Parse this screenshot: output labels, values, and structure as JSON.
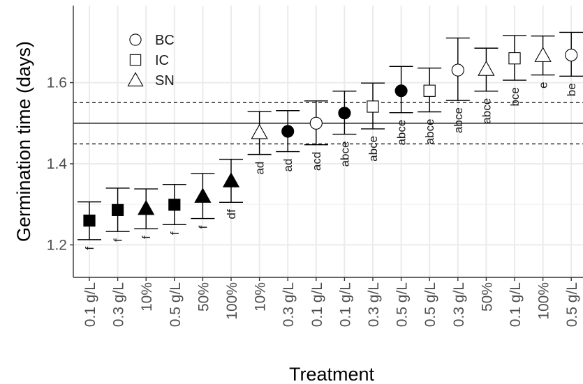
{
  "chart_data": {
    "type": "scatter",
    "title": "",
    "xlabel": "Treatment",
    "ylabel": "Germination time (days)",
    "ylim": [
      1.12,
      1.79
    ],
    "yticks": [
      1.2,
      1.4,
      1.6
    ],
    "y_tick_labels": [
      "1.2",
      "1.4",
      "1.6"
    ],
    "grid": true,
    "legend_position": "top-left",
    "legend": [
      {
        "label": "BC",
        "marker": "circle"
      },
      {
        "label": "IC",
        "marker": "square"
      },
      {
        "label": "SN",
        "marker": "triangle"
      }
    ],
    "reference_lines": [
      {
        "y": 1.5,
        "style": "solid"
      },
      {
        "y": 1.551,
        "style": "dashed"
      },
      {
        "y": 1.449,
        "style": "dashed"
      }
    ],
    "points": [
      {
        "treatment": "0.1 g/L",
        "group": "IC",
        "filled": true,
        "mean": 1.26,
        "lower": 1.213,
        "upper": 1.306,
        "letters": "f"
      },
      {
        "treatment": "0.3 g/L",
        "group": "IC",
        "filled": true,
        "mean": 1.286,
        "lower": 1.233,
        "upper": 1.34,
        "letters": "f"
      },
      {
        "treatment": "10%",
        "group": "SN",
        "filled": true,
        "mean": 1.29,
        "lower": 1.24,
        "upper": 1.338,
        "letters": "f"
      },
      {
        "treatment": "0.5 g/L",
        "group": "IC",
        "filled": true,
        "mean": 1.299,
        "lower": 1.25,
        "upper": 1.349,
        "letters": "f"
      },
      {
        "treatment": "50%",
        "group": "SN",
        "filled": true,
        "mean": 1.32,
        "lower": 1.265,
        "upper": 1.376,
        "letters": "f"
      },
      {
        "treatment": "100%",
        "group": "SN",
        "filled": true,
        "mean": 1.358,
        "lower": 1.305,
        "upper": 1.411,
        "letters": "df"
      },
      {
        "treatment": "10%",
        "group": "SN",
        "filled": false,
        "mean": 1.477,
        "lower": 1.423,
        "upper": 1.529,
        "letters": "ad"
      },
      {
        "treatment": "0.3 g/L",
        "group": "BC",
        "filled": true,
        "mean": 1.48,
        "lower": 1.43,
        "upper": 1.531,
        "letters": "ad"
      },
      {
        "treatment": "0.1 g/L",
        "group": "BC",
        "filled": false,
        "mean": 1.5,
        "lower": 1.447,
        "upper": 1.555,
        "letters": "acd"
      },
      {
        "treatment": "0.1 g/L",
        "group": "BC",
        "filled": true,
        "mean": 1.525,
        "lower": 1.473,
        "upper": 1.579,
        "letters": "abce"
      },
      {
        "treatment": "0.3 g/L",
        "group": "IC",
        "filled": false,
        "mean": 1.541,
        "lower": 1.486,
        "upper": 1.599,
        "letters": "abce"
      },
      {
        "treatment": "0.5 g/L",
        "group": "BC",
        "filled": true,
        "mean": 1.58,
        "lower": 1.526,
        "upper": 1.64,
        "letters": "abce"
      },
      {
        "treatment": "0.5 g/L",
        "group": "IC",
        "filled": false,
        "mean": 1.58,
        "lower": 1.528,
        "upper": 1.636,
        "letters": "abce"
      },
      {
        "treatment": "0.3 g/L",
        "group": "BC",
        "filled": false,
        "mean": 1.631,
        "lower": 1.556,
        "upper": 1.71,
        "letters": "abce"
      },
      {
        "treatment": "50%",
        "group": "SN",
        "filled": false,
        "mean": 1.633,
        "lower": 1.579,
        "upper": 1.685,
        "letters": "abce"
      },
      {
        "treatment": "0.1 g/L",
        "group": "IC",
        "filled": false,
        "mean": 1.66,
        "lower": 1.606,
        "upper": 1.716,
        "letters": "bce"
      },
      {
        "treatment": "100%",
        "group": "SN",
        "filled": false,
        "mean": 1.667,
        "lower": 1.619,
        "upper": 1.715,
        "letters": "e"
      },
      {
        "treatment": "0.5 g/L",
        "group": "BC",
        "filled": false,
        "mean": 1.668,
        "lower": 1.616,
        "upper": 1.724,
        "letters": "be"
      }
    ]
  }
}
